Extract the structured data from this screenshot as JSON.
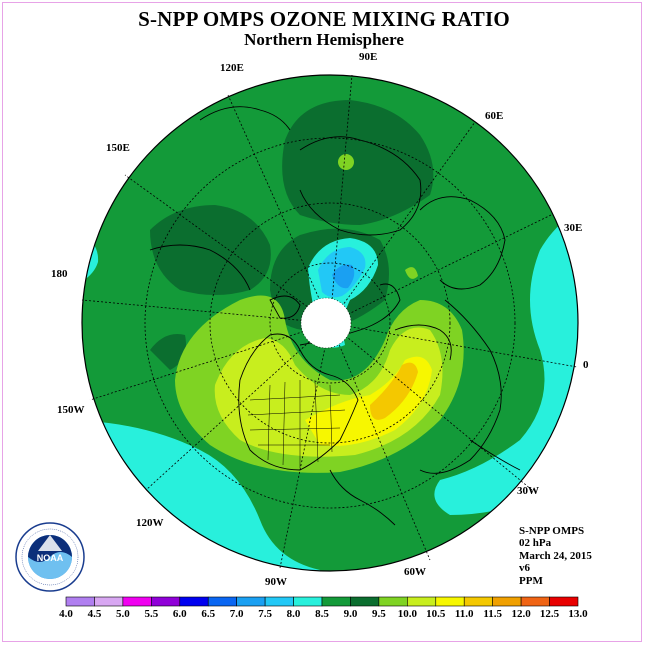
{
  "title": "S-NPP OMPS OZONE MIXING RATIO",
  "subtitle": "Northern Hemisphere",
  "longitude_labels": [
    "90E",
    "60E",
    "30E",
    "0",
    "30W",
    "60W",
    "90W",
    "120W",
    "150W",
    "180",
    "150E",
    "120E"
  ],
  "info": {
    "instrument": "S-NPP OMPS",
    "pressure": "02 hPa",
    "date": "March 24, 2015",
    "version": "v6",
    "units": "PPM"
  },
  "colorbar": {
    "ticks": [
      "4.0",
      "4.5",
      "5.0",
      "5.5",
      "6.0",
      "6.5",
      "7.0",
      "7.5",
      "8.0",
      "8.5",
      "9.0",
      "9.5",
      "10.0",
      "10.5",
      "11.0",
      "11.5",
      "12.0",
      "12.5",
      "13.0"
    ],
    "colors": [
      "#b07ff0",
      "#d8a7f2",
      "#f000f0",
      "#9000d8",
      "#0000f0",
      "#0a66f2",
      "#1aa0f2",
      "#22c8f6",
      "#28f0dc",
      "#139a39",
      "#0b6e2f",
      "#7fd323",
      "#c8ee1e",
      "#f7f700",
      "#f4c800",
      "#f0a000",
      "#f06414",
      "#e80000",
      "#a0522d",
      "#7a4a2a"
    ]
  },
  "logo_text": "NOAA"
}
